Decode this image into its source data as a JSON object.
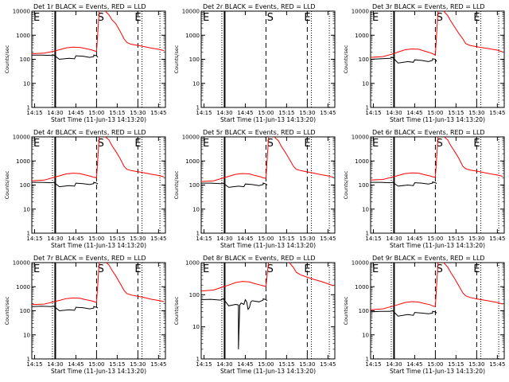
{
  "figure": {
    "ylabel": "Counts/sec",
    "xlabel": "Start Time (11-Jun-13 14:13:20)",
    "x_ticks": [
      "14:15",
      "14:30",
      "14:45",
      "15:00",
      "15:15",
      "15:30",
      "15:45"
    ],
    "y_ticks": [
      "1",
      "10",
      "100",
      "1000",
      "10000"
    ],
    "markers": [
      "S",
      "E"
    ],
    "colors": {
      "events": "#000000",
      "lld": "#ff0000",
      "axes": "#000000"
    }
  },
  "chart_data": [
    {
      "type": "line",
      "title": "Det 1r BLACK = Events, RED = LLD",
      "ylim": [
        1,
        10000
      ],
      "yscale": "log",
      "series": [
        {
          "name": "BLACK = Events",
          "color": "#000000",
          "x": [
            "14:13",
            "14:20",
            "14:27",
            "14:29",
            "14:33",
            "14:40",
            "14:44",
            "14:45",
            "14:50",
            "14:55",
            "14:58",
            "14:58",
            "15:00",
            "15:01"
          ],
          "values": [
            150,
            150,
            145,
            150,
            100,
            110,
            105,
            140,
            135,
            120,
            130,
            150,
            140,
            120
          ]
        },
        {
          "name": "RED = LLD",
          "color": "#ff0000",
          "x": [
            "14:13",
            "14:22",
            "14:28",
            "14:33",
            "14:38",
            "14:43",
            "14:48",
            "14:52",
            "14:56",
            "14:58",
            "15:00",
            "15:02",
            "15:03",
            "15:06",
            "15:09",
            "15:11",
            "15:14",
            "15:17",
            "15:20",
            "15:22",
            "15:25",
            "15:30",
            "15:35",
            "15:40",
            "15:45",
            "15:49"
          ],
          "values": [
            170,
            180,
            210,
            250,
            300,
            320,
            310,
            280,
            250,
            230,
            210,
            12000,
            12000,
            10500,
            7000,
            4500,
            3000,
            1500,
            700,
            500,
            420,
            380,
            330,
            290,
            260,
            230
          ]
        }
      ],
      "markers": {
        "S": "15:03",
        "E": "15:30"
      }
    },
    {
      "type": "line",
      "title": "Det 2r BLACK = Events, RED = LLD",
      "ylim": [
        1,
        10000
      ],
      "yscale": "log",
      "series": [],
      "markers": {
        "S": "15:03",
        "E": "15:30"
      }
    },
    {
      "type": "line",
      "title": "Det 3r BLACK = Events, RED = LLD",
      "ylim": [
        1,
        10000
      ],
      "yscale": "log",
      "series": [
        {
          "name": "BLACK = Events",
          "color": "#000000",
          "x": [
            "14:13",
            "14:20",
            "14:27",
            "14:29",
            "14:33",
            "14:40",
            "14:44",
            "14:45",
            "14:50",
            "14:55",
            "14:58",
            "14:58",
            "15:00",
            "15:01"
          ],
          "values": [
            100,
            105,
            110,
            120,
            70,
            80,
            75,
            95,
            90,
            80,
            90,
            105,
            100,
            80
          ]
        },
        {
          "name": "RED = LLD",
          "color": "#ff0000",
          "x": [
            "14:13",
            "14:22",
            "14:28",
            "14:33",
            "14:38",
            "14:43",
            "14:48",
            "14:52",
            "14:56",
            "14:58",
            "15:00",
            "15:02",
            "15:03",
            "15:06",
            "15:09",
            "15:11",
            "15:14",
            "15:17",
            "15:20",
            "15:22",
            "15:25",
            "15:30",
            "15:35",
            "15:40",
            "15:45",
            "15:49"
          ],
          "values": [
            120,
            130,
            160,
            200,
            250,
            270,
            260,
            220,
            190,
            170,
            150,
            12000,
            12000,
            10000,
            6500,
            4000,
            2200,
            1200,
            700,
            450,
            380,
            330,
            300,
            270,
            240,
            200
          ]
        }
      ],
      "markers": {
        "S": "15:03",
        "E": "15:30"
      }
    },
    {
      "type": "line",
      "title": "Det 4r BLACK = Events, RED = LLD",
      "ylim": [
        1,
        10000
      ],
      "yscale": "log",
      "series": [
        {
          "name": "BLACK = Events",
          "color": "#000000",
          "x": [
            "14:13",
            "14:20",
            "14:27",
            "14:29",
            "14:33",
            "14:40",
            "14:44",
            "14:45",
            "14:50",
            "14:55",
            "14:58",
            "14:58",
            "15:00",
            "15:01"
          ],
          "values": [
            130,
            130,
            125,
            130,
            85,
            95,
            90,
            120,
            115,
            105,
            115,
            130,
            120,
            110
          ]
        },
        {
          "name": "RED = LLD",
          "color": "#ff0000",
          "x": [
            "14:13",
            "14:22",
            "14:28",
            "14:33",
            "14:38",
            "14:43",
            "14:48",
            "14:52",
            "14:56",
            "14:58",
            "15:00",
            "15:02",
            "15:03",
            "15:06",
            "15:09",
            "15:11",
            "15:14",
            "15:17",
            "15:20",
            "15:22",
            "15:25",
            "15:30",
            "15:35",
            "15:40",
            "15:45",
            "15:49"
          ],
          "values": [
            150,
            160,
            200,
            240,
            290,
            310,
            300,
            260,
            230,
            210,
            200,
            12000,
            12000,
            10500,
            7500,
            4500,
            2500,
            1300,
            600,
            450,
            400,
            360,
            320,
            280,
            250,
            220
          ]
        }
      ],
      "markers": {
        "S": "15:03",
        "E": "15:30"
      }
    },
    {
      "type": "line",
      "title": "Det 5r BLACK = Events, RED = LLD",
      "ylim": [
        1,
        10000
      ],
      "yscale": "log",
      "series": [
        {
          "name": "BLACK = Events",
          "color": "#000000",
          "x": [
            "14:13",
            "14:20",
            "14:27",
            "14:29",
            "14:33",
            "14:40",
            "14:44",
            "14:45",
            "14:50",
            "14:55",
            "14:58",
            "14:58",
            "15:00",
            "15:01"
          ],
          "values": [
            120,
            120,
            115,
            120,
            80,
            90,
            85,
            110,
            105,
            95,
            105,
            120,
            110,
            100
          ]
        },
        {
          "name": "RED = LLD",
          "color": "#ff0000",
          "x": [
            "14:13",
            "14:22",
            "14:28",
            "14:33",
            "14:38",
            "14:43",
            "14:48",
            "14:52",
            "14:56",
            "14:58",
            "15:00",
            "15:02",
            "15:03",
            "15:06",
            "15:09",
            "15:11",
            "15:14",
            "15:17",
            "15:20",
            "15:22",
            "15:25",
            "15:30",
            "15:35",
            "15:40",
            "15:45",
            "15:49"
          ],
          "values": [
            140,
            150,
            190,
            230,
            280,
            300,
            290,
            250,
            220,
            200,
            190,
            12000,
            12000,
            10000,
            7000,
            4200,
            2300,
            1200,
            600,
            450,
            400,
            350,
            310,
            270,
            240,
            210
          ]
        }
      ],
      "markers": {
        "S": "15:03",
        "E": "15:30"
      }
    },
    {
      "type": "line",
      "title": "Det 6r BLACK = Events, RED = LLD",
      "ylim": [
        1,
        10000
      ],
      "yscale": "log",
      "series": [
        {
          "name": "BLACK = Events",
          "color": "#000000",
          "x": [
            "14:13",
            "14:20",
            "14:27",
            "14:29",
            "14:33",
            "14:40",
            "14:44",
            "14:45",
            "14:50",
            "14:55",
            "14:58",
            "14:58",
            "15:00",
            "15:01"
          ],
          "values": [
            130,
            130,
            125,
            130,
            90,
            100,
            95,
            125,
            120,
            110,
            120,
            135,
            125,
            115
          ]
        },
        {
          "name": "RED = LLD",
          "color": "#ff0000",
          "x": [
            "14:13",
            "14:22",
            "14:28",
            "14:33",
            "14:38",
            "14:43",
            "14:48",
            "14:52",
            "14:56",
            "14:58",
            "15:00",
            "15:02",
            "15:03",
            "15:06",
            "15:09",
            "15:11",
            "15:14",
            "15:17",
            "15:20",
            "15:22",
            "15:25",
            "15:30",
            "15:35",
            "15:40",
            "15:45",
            "15:49"
          ],
          "values": [
            160,
            170,
            210,
            250,
            300,
            320,
            310,
            270,
            240,
            220,
            210,
            12000,
            12000,
            10500,
            7500,
            4500,
            2500,
            1300,
            600,
            480,
            420,
            380,
            330,
            290,
            260,
            230
          ]
        }
      ],
      "markers": {
        "S": "15:03",
        "E": "15:30"
      }
    },
    {
      "type": "line",
      "title": "Det 7r BLACK = Events, RED = LLD",
      "ylim": [
        1,
        10000
      ],
      "yscale": "log",
      "series": [
        {
          "name": "BLACK = Events",
          "color": "#000000",
          "x": [
            "14:13",
            "14:20",
            "14:27",
            "14:29",
            "14:33",
            "14:40",
            "14:44",
            "14:45",
            "14:50",
            "14:55",
            "14:58",
            "14:58",
            "15:00",
            "15:01"
          ],
          "values": [
            150,
            155,
            150,
            155,
            100,
            110,
            105,
            140,
            135,
            120,
            130,
            150,
            140,
            130
          ]
        },
        {
          "name": "RED = LLD",
          "color": "#ff0000",
          "x": [
            "14:13",
            "14:22",
            "14:28",
            "14:33",
            "14:38",
            "14:43",
            "14:48",
            "14:52",
            "14:56",
            "14:58",
            "15:00",
            "15:02",
            "15:03",
            "15:06",
            "15:09",
            "15:11",
            "15:14",
            "15:17",
            "15:20",
            "15:22",
            "15:25",
            "15:30",
            "15:35",
            "15:40",
            "15:45",
            "15:49"
          ],
          "values": [
            180,
            190,
            230,
            270,
            320,
            340,
            330,
            290,
            260,
            240,
            220,
            12000,
            12000,
            11000,
            8000,
            5000,
            2800,
            1400,
            700,
            520,
            450,
            400,
            350,
            300,
            270,
            240
          ]
        }
      ],
      "markers": {
        "S": "15:03",
        "E": "15:30"
      }
    },
    {
      "type": "line",
      "title": "Det 8r BLACK = Events, RED = LLD",
      "ylim": [
        1,
        1000
      ],
      "yscale": "log",
      "series": [
        {
          "name": "BLACK = Events",
          "color": "#000000",
          "x": [
            "14:13",
            "14:20",
            "14:27",
            "14:29",
            "14:33",
            "14:38",
            "14:40",
            "14:40",
            "14:41",
            "14:42",
            "14:44",
            "14:45",
            "14:46",
            "14:47",
            "14:48",
            "14:49",
            "14:50",
            "14:55",
            "14:58",
            "14:58",
            "15:00",
            "15:01"
          ],
          "values": [
            70,
            72,
            68,
            75,
            45,
            50,
            48,
            2,
            48,
            55,
            50,
            70,
            60,
            35,
            40,
            60,
            65,
            60,
            68,
            75,
            70,
            65
          ]
        },
        {
          "name": "RED = LLD",
          "color": "#ff0000",
          "x": [
            "14:13",
            "14:22",
            "14:28",
            "14:33",
            "14:38",
            "14:43",
            "14:48",
            "14:52",
            "14:56",
            "14:58",
            "15:00",
            "15:02",
            "15:03",
            "15:06",
            "15:09",
            "15:11",
            "15:14",
            "15:17",
            "15:20",
            "15:22",
            "15:25",
            "15:30",
            "15:35",
            "15:40",
            "15:45",
            "15:49"
          ],
          "values": [
            130,
            140,
            170,
            200,
            240,
            260,
            250,
            220,
            200,
            190,
            180,
            1200,
            1200,
            1200,
            1200,
            1200,
            1200,
            1000,
            700,
            500,
            420,
            350,
            300,
            260,
            220,
            190
          ]
        }
      ],
      "markers": {
        "S": "15:03",
        "E": "15:30"
      }
    },
    {
      "type": "line",
      "title": "Det 9r BLACK = Events, RED = LLD",
      "ylim": [
        1,
        10000
      ],
      "yscale": "log",
      "series": [
        {
          "name": "BLACK = Events",
          "color": "#000000",
          "x": [
            "14:13",
            "14:20",
            "14:27",
            "14:29",
            "14:33",
            "14:40",
            "14:44",
            "14:45",
            "14:50",
            "14:55",
            "14:58",
            "14:58",
            "15:00",
            "15:01"
          ],
          "values": [
            90,
            95,
            95,
            100,
            60,
            70,
            65,
            85,
            80,
            75,
            80,
            95,
            90,
            80
          ]
        },
        {
          "name": "RED = LLD",
          "color": "#ff0000",
          "x": [
            "14:13",
            "14:22",
            "14:28",
            "14:33",
            "14:38",
            "14:43",
            "14:48",
            "14:52",
            "14:56",
            "14:58",
            "15:00",
            "15:02",
            "15:03",
            "15:06",
            "15:09",
            "15:11",
            "15:14",
            "15:17",
            "15:20",
            "15:22",
            "15:25",
            "15:30",
            "15:35",
            "15:40",
            "15:45",
            "15:49"
          ],
          "values": [
            110,
            120,
            150,
            180,
            220,
            240,
            230,
            200,
            180,
            160,
            150,
            12000,
            12000,
            10000,
            6500,
            4000,
            2200,
            1100,
            550,
            420,
            360,
            310,
            280,
            250,
            220,
            190
          ]
        }
      ],
      "markers": {
        "S": "15:03",
        "E": "15:30"
      }
    }
  ]
}
